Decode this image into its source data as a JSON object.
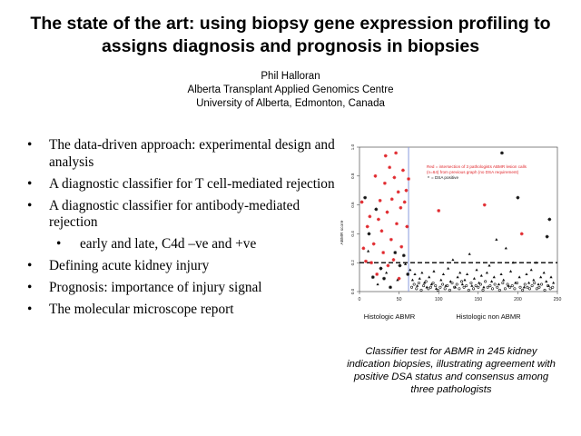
{
  "slide": {
    "title_line1": "The state of the art: using biopsy gene expression profiling to",
    "title_line2": "assigns diagnosis and prognosis in biopsies",
    "author": "Phil Halloran",
    "affiliation": "Alberta Transplant Applied Genomics Centre",
    "university": "University of Alberta, Edmonton, Canada"
  },
  "bullets": [
    {
      "text": "The data-driven approach: experimental design and analysis",
      "level": 1
    },
    {
      "text": "A diagnostic classifier for T cell-mediated rejection",
      "level": 1
    },
    {
      "text": "A diagnostic classifier for antibody-mediated rejection",
      "level": 1
    },
    {
      "text": "early and late, C4d –ve and +ve",
      "level": 2
    },
    {
      "text": "Defining acute kidney injury",
      "level": 1
    },
    {
      "text": "Prognosis: importance of injury signal",
      "level": 1
    },
    {
      "text": "The molecular microscope report",
      "level": 1
    }
  ],
  "bullet_symbol": "•",
  "caption": "Classifier test for ABMR in 245 kidney indication biopsies, illustrating agreement with positive DSA status and consensus among three pathologists",
  "chart_data": {
    "type": "scatter",
    "ylabel": "ABMR score",
    "xlim": [
      0,
      250
    ],
    "ylim": [
      0,
      1.0
    ],
    "x_ticks": [
      0,
      50,
      100,
      150,
      200,
      250
    ],
    "y_ticks": [
      0.0,
      0.2,
      0.4,
      0.6,
      0.8,
      1.0
    ],
    "y_tick_labels": [
      "0.0",
      "0.2",
      "0.4",
      "0.6",
      "0.8",
      "1.0"
    ],
    "group_labels": [
      "Histologic ABMR",
      "Histologic non ABMR"
    ],
    "divider_x": 62,
    "threshold_y": 0.2,
    "legend": {
      "line1": "Red = intersection of 3 pathologists ABMR lesion calls",
      "line2": "(n=64) from previous graph (no DSA requirement)",
      "line3": "= DSA positive"
    },
    "colors": {
      "red": "#e0262b",
      "black": "#111111",
      "divider": "#8899dd"
    },
    "series": [
      {
        "name": "red_star",
        "marker": "star",
        "color": "#e0262b",
        "points": [
          [
            3,
            0.62
          ],
          [
            5,
            0.3
          ],
          [
            8,
            0.21
          ],
          [
            10,
            0.45
          ],
          [
            13,
            0.52
          ],
          [
            15,
            0.2
          ],
          [
            18,
            0.33
          ],
          [
            20,
            0.8
          ],
          [
            22,
            0.12
          ],
          [
            24,
            0.5
          ],
          [
            26,
            0.63
          ],
          [
            28,
            0.42
          ],
          [
            30,
            0.27
          ],
          [
            32,
            0.75
          ],
          [
            33,
            0.94
          ],
          [
            35,
            0.55
          ],
          [
            36,
            0.18
          ],
          [
            38,
            0.86
          ],
          [
            40,
            0.36
          ],
          [
            41,
            0.64
          ],
          [
            43,
            0.22
          ],
          [
            44,
            0.79
          ],
          [
            46,
            0.96
          ],
          [
            47,
            0.47
          ],
          [
            49,
            0.69
          ],
          [
            50,
            0.09
          ],
          [
            52,
            0.58
          ],
          [
            53,
            0.31
          ],
          [
            55,
            0.84
          ],
          [
            57,
            0.62
          ],
          [
            59,
            0.7
          ],
          [
            60,
            0.45
          ],
          [
            62,
            0.78
          ],
          [
            100,
            0.56
          ],
          [
            158,
            0.6
          ],
          [
            205,
            0.4
          ]
        ]
      },
      {
        "name": "black_star",
        "marker": "star",
        "color": "#111111",
        "points": [
          [
            7,
            0.65
          ],
          [
            12,
            0.4
          ],
          [
            17,
            0.1
          ],
          [
            21,
            0.57
          ],
          [
            27,
            0.16
          ],
          [
            31,
            0.09
          ],
          [
            39,
            0.03
          ],
          [
            45,
            0.27
          ],
          [
            51,
            0.18
          ],
          [
            56,
            0.25
          ],
          [
            61,
            0.12
          ],
          [
            180,
            0.96
          ],
          [
            200,
            0.65
          ],
          [
            237,
            0.38
          ],
          [
            240,
            0.5
          ]
        ]
      },
      {
        "name": "black_triangle",
        "marker": "triangle",
        "color": "#111111",
        "points": [
          [
            11,
            0.28
          ],
          [
            23,
            0.05
          ],
          [
            34,
            0.13
          ],
          [
            48,
            0.08
          ],
          [
            58,
            0.19
          ],
          [
            64,
            0.15
          ],
          [
            67,
            0.08
          ],
          [
            70,
            0.12
          ],
          [
            73,
            0.04
          ],
          [
            76,
            0.09
          ],
          [
            79,
            0.13
          ],
          [
            82,
            0.06
          ],
          [
            85,
            0.03
          ],
          [
            88,
            0.1
          ],
          [
            91,
            0.05
          ],
          [
            94,
            0.14
          ],
          [
            97,
            0.02
          ],
          [
            103,
            0.08
          ],
          [
            106,
            0.12
          ],
          [
            109,
            0.04
          ],
          [
            112,
            0.16
          ],
          [
            115,
            0.07
          ],
          [
            118,
            0.22
          ],
          [
            121,
            0.03
          ],
          [
            124,
            0.1
          ],
          [
            127,
            0.13
          ],
          [
            130,
            0.05
          ],
          [
            133,
            0.08
          ],
          [
            136,
            0.12
          ],
          [
            139,
            0.26
          ],
          [
            142,
            0.04
          ],
          [
            145,
            0.09
          ],
          [
            148,
            0.15
          ],
          [
            151,
            0.06
          ],
          [
            154,
            0.11
          ],
          [
            157,
            0.03
          ],
          [
            161,
            0.13
          ],
          [
            164,
            0.18
          ],
          [
            167,
            0.07
          ],
          [
            170,
            0.1
          ],
          [
            173,
            0.36
          ],
          [
            176,
            0.05
          ],
          [
            179,
            0.12
          ],
          [
            182,
            0.08
          ],
          [
            185,
            0.3
          ],
          [
            188,
            0.04
          ],
          [
            191,
            0.14
          ],
          [
            194,
            0.2
          ],
          [
            197,
            0.06
          ],
          [
            202,
            0.1
          ],
          [
            208,
            0.03
          ],
          [
            211,
            0.12
          ],
          [
            214,
            0.06
          ],
          [
            217,
            0.15
          ],
          [
            220,
            0.08
          ],
          [
            223,
            0.2
          ],
          [
            226,
            0.05
          ],
          [
            229,
            0.1
          ],
          [
            233,
            0.13
          ],
          [
            236,
            0.07
          ],
          [
            239,
            0.04
          ],
          [
            242,
            0.1
          ],
          [
            245,
            0.06
          ]
        ]
      },
      {
        "name": "black_circle",
        "marker": "circle",
        "color": "#111111",
        "points": [
          [
            66,
            0.03
          ],
          [
            69,
            0.05
          ],
          [
            72,
            0.02
          ],
          [
            75,
            0.06
          ],
          [
            78,
            0.01
          ],
          [
            81,
            0.04
          ],
          [
            84,
            0.07
          ],
          [
            87,
            0.02
          ],
          [
            90,
            0.03
          ],
          [
            93,
            0.06
          ],
          [
            96,
            0.04
          ],
          [
            99,
            0.01
          ],
          [
            102,
            0.03
          ],
          [
            105,
            0.05
          ],
          [
            108,
            0.02
          ],
          [
            111,
            0.04
          ],
          [
            114,
            0.01
          ],
          [
            117,
            0.06
          ],
          [
            120,
            0.03
          ],
          [
            123,
            0.05
          ],
          [
            126,
            0.02
          ],
          [
            129,
            0.07
          ],
          [
            132,
            0.03
          ],
          [
            135,
            0.04
          ],
          [
            138,
            0.01
          ],
          [
            141,
            0.06
          ],
          [
            144,
            0.02
          ],
          [
            147,
            0.04
          ],
          [
            150,
            0.03
          ],
          [
            153,
            0.05
          ],
          [
            156,
            0.01
          ],
          [
            159,
            0.07
          ],
          [
            162,
            0.03
          ],
          [
            165,
            0.04
          ],
          [
            168,
            0.02
          ],
          [
            171,
            0.05
          ],
          [
            174,
            0.03
          ],
          [
            177,
            0.01
          ],
          [
            181,
            0.06
          ],
          [
            184,
            0.02
          ],
          [
            187,
            0.05
          ],
          [
            190,
            0.03
          ],
          [
            193,
            0.04
          ],
          [
            196,
            0.02
          ],
          [
            199,
            0.06
          ],
          [
            203,
            0.03
          ],
          [
            206,
            0.01
          ],
          [
            209,
            0.05
          ],
          [
            212,
            0.03
          ],
          [
            215,
            0.02
          ],
          [
            218,
            0.04
          ],
          [
            221,
            0.06
          ],
          [
            224,
            0.02
          ],
          [
            227,
            0.03
          ],
          [
            230,
            0.05
          ],
          [
            234,
            0.01
          ],
          [
            238,
            0.04
          ],
          [
            241,
            0.02
          ],
          [
            244,
            0.03
          ]
        ]
      }
    ]
  }
}
